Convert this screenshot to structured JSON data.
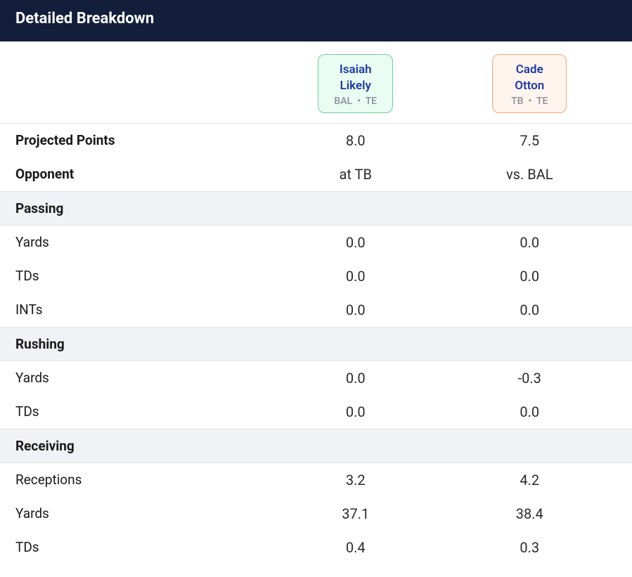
{
  "header": {
    "title": "Detailed Breakdown"
  },
  "players": [
    {
      "first": "Isaiah",
      "last": "Likely",
      "team": "BAL",
      "pos": "TE"
    },
    {
      "first": "Cade",
      "last": "Otton",
      "team": "TB",
      "pos": "TE"
    }
  ],
  "summary": [
    {
      "label": "Projected Points",
      "bold": true,
      "p1": "8.0",
      "p2": "7.5"
    },
    {
      "label": "Opponent",
      "bold": true,
      "p1": "at TB",
      "p2": "vs. BAL"
    }
  ],
  "sections": [
    {
      "title": "Passing",
      "rows": [
        {
          "label": "Yards",
          "p1": "0.0",
          "p2": "0.0"
        },
        {
          "label": "TDs",
          "p1": "0.0",
          "p2": "0.0"
        },
        {
          "label": "INTs",
          "p1": "0.0",
          "p2": "0.0"
        }
      ]
    },
    {
      "title": "Rushing",
      "rows": [
        {
          "label": "Yards",
          "p1": "0.0",
          "p2": "-0.3"
        },
        {
          "label": "TDs",
          "p1": "0.0",
          "p2": "0.0"
        }
      ]
    },
    {
      "title": "Receiving",
      "rows": [
        {
          "label": "Receptions",
          "p1": "3.2",
          "p2": "4.2"
        },
        {
          "label": "Yards",
          "p1": "37.1",
          "p2": "38.4"
        },
        {
          "label": "TDs",
          "p1": "0.4",
          "p2": "0.3"
        }
      ]
    }
  ],
  "style": {
    "header_bg": "#121e3a",
    "header_text": "#ffffff",
    "section_bg": "#f1f2f5",
    "border_color": "#e1e3e8",
    "player1_bg": "#eafdf2",
    "player1_border": "#6fcf97",
    "player2_bg": "#fff4ee",
    "player2_border": "#f0a677",
    "player_name_color": "#1e3aa0",
    "player_sub_color": "#8a8f99",
    "body_text": "#1a1a1a"
  }
}
